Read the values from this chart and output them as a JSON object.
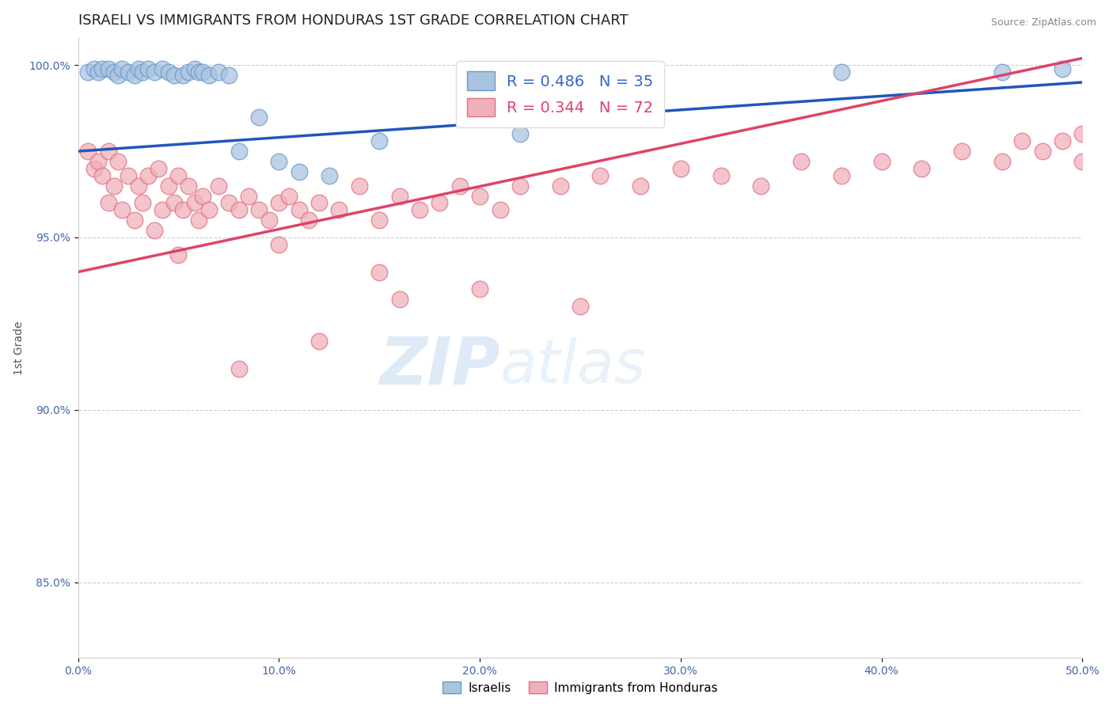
{
  "title": "ISRAELI VS IMMIGRANTS FROM HONDURAS 1ST GRADE CORRELATION CHART",
  "source": "Source: ZipAtlas.com",
  "ylabel": "1st Grade",
  "xlim": [
    0.0,
    0.5
  ],
  "ylim": [
    0.828,
    1.008
  ],
  "xticks": [
    0.0,
    0.1,
    0.2,
    0.3,
    0.4,
    0.5
  ],
  "xtick_labels": [
    "0.0%",
    "10.0%",
    "20.0%",
    "30.0%",
    "40.0%",
    "50.0%"
  ],
  "yticks": [
    0.85,
    0.9,
    0.95,
    1.0
  ],
  "ytick_labels": [
    "85.0%",
    "90.0%",
    "95.0%",
    "100.0%"
  ],
  "grid_color": "#cccccc",
  "background_color": "#ffffff",
  "israelis_color": "#aac4e0",
  "israelis_edge_color": "#6699cc",
  "honduras_color": "#f0b0bb",
  "honduras_edge_color": "#e07080",
  "R_israelis": 0.486,
  "N_israelis": 35,
  "R_honduras": 0.344,
  "N_honduras": 72,
  "trend_blue": "#2255bb",
  "trend_pink": "#dd4466",
  "legend_label_blue": "Israelis",
  "legend_label_pink": "Immigrants from Honduras",
  "title_fontsize": 13,
  "axis_label_fontsize": 10,
  "tick_fontsize": 10,
  "isr_x": [
    0.005,
    0.008,
    0.01,
    0.012,
    0.015,
    0.018,
    0.02,
    0.022,
    0.025,
    0.028,
    0.03,
    0.032,
    0.035,
    0.038,
    0.042,
    0.045,
    0.048,
    0.052,
    0.055,
    0.058,
    0.06,
    0.062,
    0.065,
    0.07,
    0.075,
    0.08,
    0.09,
    0.1,
    0.11,
    0.125,
    0.15,
    0.22,
    0.38,
    0.46,
    0.49
  ],
  "isr_y": [
    0.998,
    0.999,
    0.998,
    0.999,
    0.999,
    0.998,
    0.997,
    0.999,
    0.998,
    0.997,
    0.999,
    0.998,
    0.999,
    0.998,
    0.999,
    0.998,
    0.997,
    0.997,
    0.998,
    0.999,
    0.998,
    0.998,
    0.997,
    0.998,
    0.997,
    0.975,
    0.985,
    0.972,
    0.969,
    0.968,
    0.978,
    0.98,
    0.998,
    0.998,
    0.999
  ],
  "hon_x": [
    0.005,
    0.008,
    0.01,
    0.012,
    0.015,
    0.015,
    0.018,
    0.02,
    0.022,
    0.025,
    0.028,
    0.03,
    0.032,
    0.035,
    0.038,
    0.04,
    0.042,
    0.045,
    0.048,
    0.05,
    0.052,
    0.055,
    0.058,
    0.06,
    0.062,
    0.065,
    0.07,
    0.075,
    0.08,
    0.085,
    0.09,
    0.095,
    0.1,
    0.105,
    0.11,
    0.115,
    0.12,
    0.13,
    0.14,
    0.15,
    0.16,
    0.17,
    0.18,
    0.19,
    0.2,
    0.21,
    0.22,
    0.24,
    0.26,
    0.28,
    0.3,
    0.32,
    0.34,
    0.36,
    0.38,
    0.4,
    0.42,
    0.44,
    0.46,
    0.47,
    0.48,
    0.49,
    0.5,
    0.5,
    0.05,
    0.1,
    0.15,
    0.16,
    0.2,
    0.25,
    0.12,
    0.08
  ],
  "hon_y": [
    0.975,
    0.97,
    0.972,
    0.968,
    0.975,
    0.96,
    0.965,
    0.972,
    0.958,
    0.968,
    0.955,
    0.965,
    0.96,
    0.968,
    0.952,
    0.97,
    0.958,
    0.965,
    0.96,
    0.968,
    0.958,
    0.965,
    0.96,
    0.955,
    0.962,
    0.958,
    0.965,
    0.96,
    0.958,
    0.962,
    0.958,
    0.955,
    0.96,
    0.962,
    0.958,
    0.955,
    0.96,
    0.958,
    0.965,
    0.955,
    0.962,
    0.958,
    0.96,
    0.965,
    0.962,
    0.958,
    0.965,
    0.965,
    0.968,
    0.965,
    0.97,
    0.968,
    0.965,
    0.972,
    0.968,
    0.972,
    0.97,
    0.975,
    0.972,
    0.978,
    0.975,
    0.978,
    0.98,
    0.972,
    0.945,
    0.948,
    0.94,
    0.932,
    0.935,
    0.93,
    0.92,
    0.912
  ],
  "trend_blue_x0": 0.0,
  "trend_blue_y0": 0.975,
  "trend_blue_x1": 0.5,
  "trend_blue_y1": 0.995,
  "trend_pink_x0": 0.0,
  "trend_pink_y0": 0.94,
  "trend_pink_x1": 0.5,
  "trend_pink_y1": 1.002
}
